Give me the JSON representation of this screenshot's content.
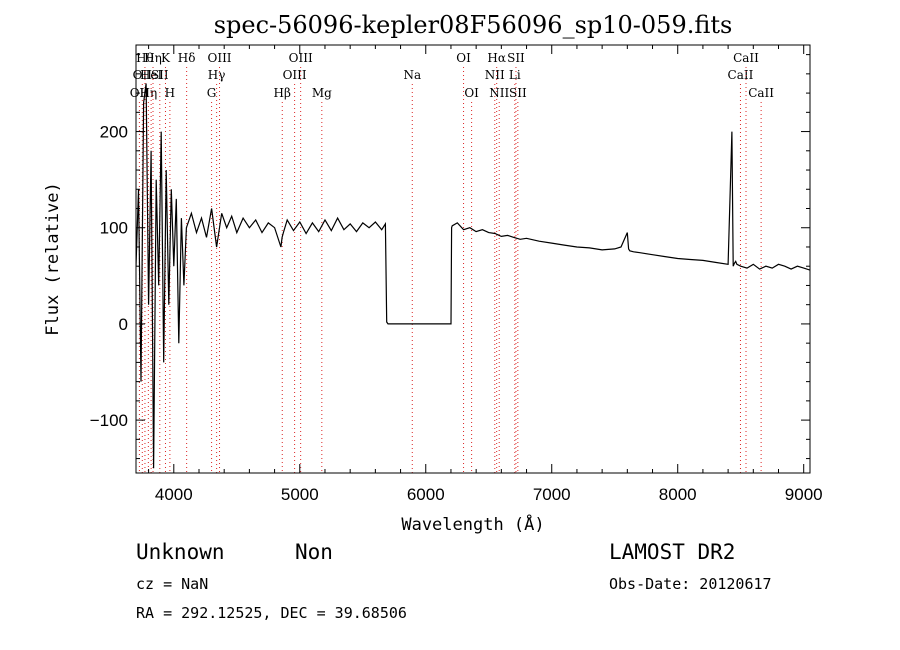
{
  "chart_data": {
    "type": "line",
    "title": "spec-56096-kepler08F56096_sp10-059.fits",
    "xlabel": "Wavelength (Å)",
    "ylabel": "Flux (relative)",
    "xlim": [
      3700,
      9050
    ],
    "ylim": [
      -155,
      290
    ],
    "x_ticks": [
      4000,
      5000,
      6000,
      7000,
      8000,
      9000
    ],
    "x_tick_labels": [
      "4000",
      "5000",
      "6000",
      "7000",
      "8000",
      "9000"
    ],
    "y_ticks": [
      -100,
      0,
      100,
      200
    ],
    "y_tick_labels": [
      "−100",
      "0",
      "100",
      "200"
    ],
    "grid": false,
    "line_color": "#000000",
    "line_marker_color": "#dc2626",
    "spectrum": {
      "x": [
        3700,
        3720,
        3740,
        3760,
        3780,
        3800,
        3820,
        3840,
        3860,
        3880,
        3900,
        3920,
        3940,
        3960,
        3980,
        4000,
        4020,
        4040,
        4060,
        4080,
        4100,
        4140,
        4180,
        4220,
        4260,
        4300,
        4340,
        4380,
        4420,
        4460,
        4500,
        4550,
        4600,
        4650,
        4700,
        4750,
        4800,
        4850,
        4860,
        4870,
        4900,
        4950,
        5000,
        5050,
        5100,
        5150,
        5200,
        5250,
        5300,
        5350,
        5400,
        5450,
        5500,
        5550,
        5600,
        5650,
        5680,
        5690,
        5700,
        5800,
        5900,
        6000,
        6100,
        6200,
        6205,
        6210,
        6250,
        6300,
        6350,
        6400,
        6450,
        6500,
        6550,
        6600,
        6650,
        6700,
        6750,
        6800,
        6900,
        7000,
        7100,
        7200,
        7300,
        7400,
        7500,
        7550,
        7600,
        7610,
        7620,
        7650,
        7700,
        7800,
        7900,
        8000,
        8100,
        8200,
        8300,
        8400,
        8430,
        8440,
        8450,
        8460,
        8470,
        8500,
        8550,
        8600,
        8650,
        8700,
        8750,
        8800,
        8850,
        8900,
        8950,
        9000,
        9050
      ],
      "y": [
        60,
        140,
        -60,
        230,
        250,
        20,
        180,
        -150,
        150,
        40,
        200,
        -40,
        160,
        20,
        140,
        60,
        130,
        -20,
        110,
        40,
        100,
        115,
        95,
        110,
        90,
        120,
        80,
        115,
        100,
        112,
        95,
        110,
        100,
        108,
        95,
        105,
        100,
        80,
        90,
        95,
        108,
        97,
        106,
        94,
        105,
        96,
        108,
        97,
        110,
        98,
        104,
        96,
        105,
        100,
        106,
        98,
        104,
        2,
        0,
        0,
        0,
        0,
        0,
        0,
        100,
        102,
        105,
        98,
        100,
        96,
        98,
        95,
        94,
        91,
        92,
        90,
        88,
        89,
        86,
        84,
        82,
        80,
        79,
        77,
        78,
        80,
        95,
        78,
        76,
        75,
        74,
        72,
        70,
        68,
        67,
        66,
        64,
        62,
        200,
        60,
        63,
        65,
        62,
        60,
        58,
        62,
        57,
        60,
        58,
        62,
        60,
        57,
        60,
        58,
        56
      ]
    },
    "line_markers": [
      {
        "x": 3727,
        "label": "OII",
        "row": 2
      },
      {
        "x": 3750,
        "label": "OII",
        "row": 1
      },
      {
        "x": 3771,
        "label": "Hθ",
        "row": 0
      },
      {
        "x": 3798,
        "label": "Hη",
        "row": 2
      },
      {
        "x": 3820,
        "label": "HeI",
        "row": 1
      },
      {
        "x": 3835,
        "label": "Hη",
        "row": 0
      },
      {
        "x": 3889,
        "label": "SII",
        "row": 1
      },
      {
        "x": 3934,
        "label": "K",
        "row": 0
      },
      {
        "x": 3969,
        "label": "H",
        "row": 2
      },
      {
        "x": 4102,
        "label": "Hδ",
        "row": 0
      },
      {
        "x": 4300,
        "label": "G",
        "row": 2
      },
      {
        "x": 4340,
        "label": "Hγ",
        "row": 1
      },
      {
        "x": 4363,
        "label": "OIII",
        "row": 0
      },
      {
        "x": 4861,
        "label": "Hβ",
        "row": 2
      },
      {
        "x": 4959,
        "label": "OIII",
        "row": 1
      },
      {
        "x": 5007,
        "label": "OIII",
        "row": 0
      },
      {
        "x": 5175,
        "label": "Mg",
        "row": 2
      },
      {
        "x": 5893,
        "label": "Na",
        "row": 1
      },
      {
        "x": 6300,
        "label": "OI",
        "row": 0
      },
      {
        "x": 6364,
        "label": "OI",
        "row": 2
      },
      {
        "x": 6548,
        "label": "NII",
        "row": 1
      },
      {
        "x": 6563,
        "label": "Hα",
        "row": 0
      },
      {
        "x": 6583,
        "label": "NII",
        "row": 2
      },
      {
        "x": 6707,
        "label": "Li",
        "row": 1
      },
      {
        "x": 6716,
        "label": "SII",
        "row": 0
      },
      {
        "x": 6731,
        "label": "SII",
        "row": 2
      },
      {
        "x": 8498,
        "label": "CaII",
        "row": 1
      },
      {
        "x": 8542,
        "label": "CaII",
        "row": 0
      },
      {
        "x": 8662,
        "label": "CaII",
        "row": 2
      }
    ]
  },
  "info": {
    "class": "Unknown",
    "subclass": "Non",
    "survey": "LAMOST DR2",
    "cz": "cz = NaN",
    "obs_date": "Obs-Date: 20120617",
    "radec": "RA = 292.12525, DEC =  39.68506"
  }
}
